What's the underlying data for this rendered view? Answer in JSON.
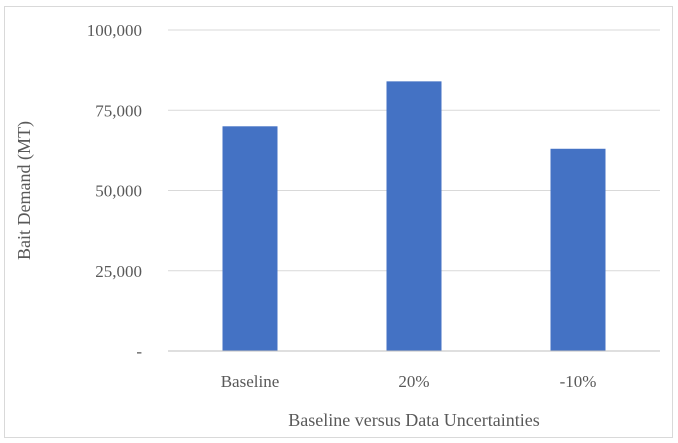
{
  "chart_data": {
    "type": "bar",
    "title": "",
    "xlabel": "Baseline versus Data Uncertainties",
    "ylabel": "Bait Demand (MT)",
    "categories": [
      "Baseline",
      "20%",
      "-10%"
    ],
    "series": [
      {
        "values": [
          70000,
          84000,
          63000
        ],
        "color": "#4472c4"
      }
    ],
    "ylim": [
      0,
      100000
    ],
    "yticks": [
      0,
      25000,
      50000,
      75000,
      100000
    ],
    "ytick_labels": [
      "-",
      "25,000",
      "50,000",
      "75,000",
      "100,000"
    ],
    "grid": true,
    "legend": "none"
  }
}
